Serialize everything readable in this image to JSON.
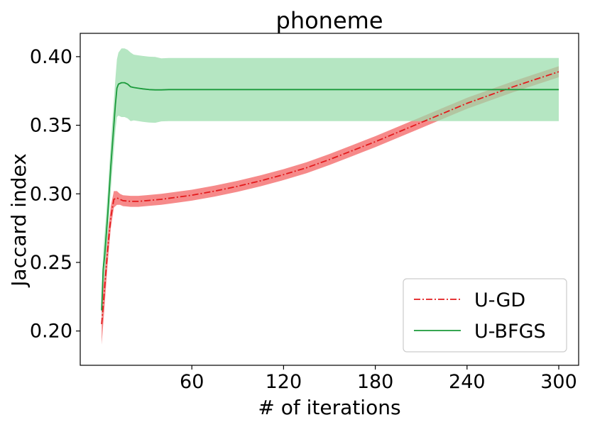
{
  "chart_data": {
    "type": "line",
    "title": "phoneme",
    "xlabel": "# of iterations",
    "ylabel": "Jaccard index",
    "xlim": [
      -13,
      313
    ],
    "ylim": [
      0.175,
      0.417
    ],
    "xticks": [
      60,
      120,
      180,
      240,
      300
    ],
    "xtick_labels": [
      "60",
      "120",
      "180",
      "240",
      "300"
    ],
    "yticks": [
      0.2,
      0.25,
      0.3,
      0.35,
      0.4
    ],
    "ytick_labels": [
      "0.20",
      "0.25",
      "0.30",
      "0.35",
      "0.40"
    ],
    "grid": false,
    "legend_position": "lower-right",
    "series": [
      {
        "name": "U-GD",
        "color": "#e31a1c",
        "band_color": "#f46d6d",
        "line_style": "dash-dot",
        "x": [
          1,
          3,
          5,
          7,
          9,
          11,
          13,
          15,
          17,
          20,
          25,
          30,
          40,
          50,
          60,
          75,
          90,
          105,
          120,
          135,
          150,
          165,
          180,
          195,
          210,
          225,
          240,
          255,
          270,
          285,
          300
        ],
        "values": [
          0.205,
          0.232,
          0.26,
          0.283,
          0.296,
          0.297,
          0.296,
          0.295,
          0.2948,
          0.2945,
          0.2945,
          0.295,
          0.296,
          0.2975,
          0.299,
          0.302,
          0.3055,
          0.3095,
          0.314,
          0.319,
          0.325,
          0.3315,
          0.338,
          0.345,
          0.352,
          0.359,
          0.366,
          0.372,
          0.378,
          0.3835,
          0.389
        ],
        "band": [
          0.015,
          0.013,
          0.01,
          0.008,
          0.006,
          0.005,
          0.004,
          0.004,
          0.004,
          0.004,
          0.004,
          0.004,
          0.004,
          0.004,
          0.004,
          0.004,
          0.004,
          0.004,
          0.004,
          0.004,
          0.004,
          0.004,
          0.004,
          0.004,
          0.004,
          0.004,
          0.004,
          0.004,
          0.004,
          0.004,
          0.004
        ]
      },
      {
        "name": "U-BFGS",
        "color": "#1a9a3a",
        "band_color": "#98dcaa",
        "line_style": "solid",
        "x": [
          1,
          2,
          3,
          5,
          7,
          9,
          10,
          11,
          12,
          14,
          16,
          18,
          20,
          22,
          25,
          28,
          32,
          36,
          40,
          45,
          50,
          60,
          80,
          120,
          180,
          240,
          300
        ],
        "values": [
          0.215,
          0.245,
          0.255,
          0.285,
          0.32,
          0.35,
          0.365,
          0.377,
          0.38,
          0.381,
          0.381,
          0.38,
          0.378,
          0.3775,
          0.377,
          0.3765,
          0.376,
          0.3758,
          0.3758,
          0.376,
          0.376,
          0.376,
          0.376,
          0.376,
          0.376,
          0.376,
          0.376
        ],
        "band": [
          0.008,
          0.012,
          0.016,
          0.016,
          0.017,
          0.018,
          0.019,
          0.021,
          0.023,
          0.025,
          0.025,
          0.025,
          0.025,
          0.024,
          0.024,
          0.024,
          0.024,
          0.024,
          0.023,
          0.023,
          0.023,
          0.023,
          0.023,
          0.023,
          0.023,
          0.023,
          0.023
        ]
      }
    ]
  }
}
